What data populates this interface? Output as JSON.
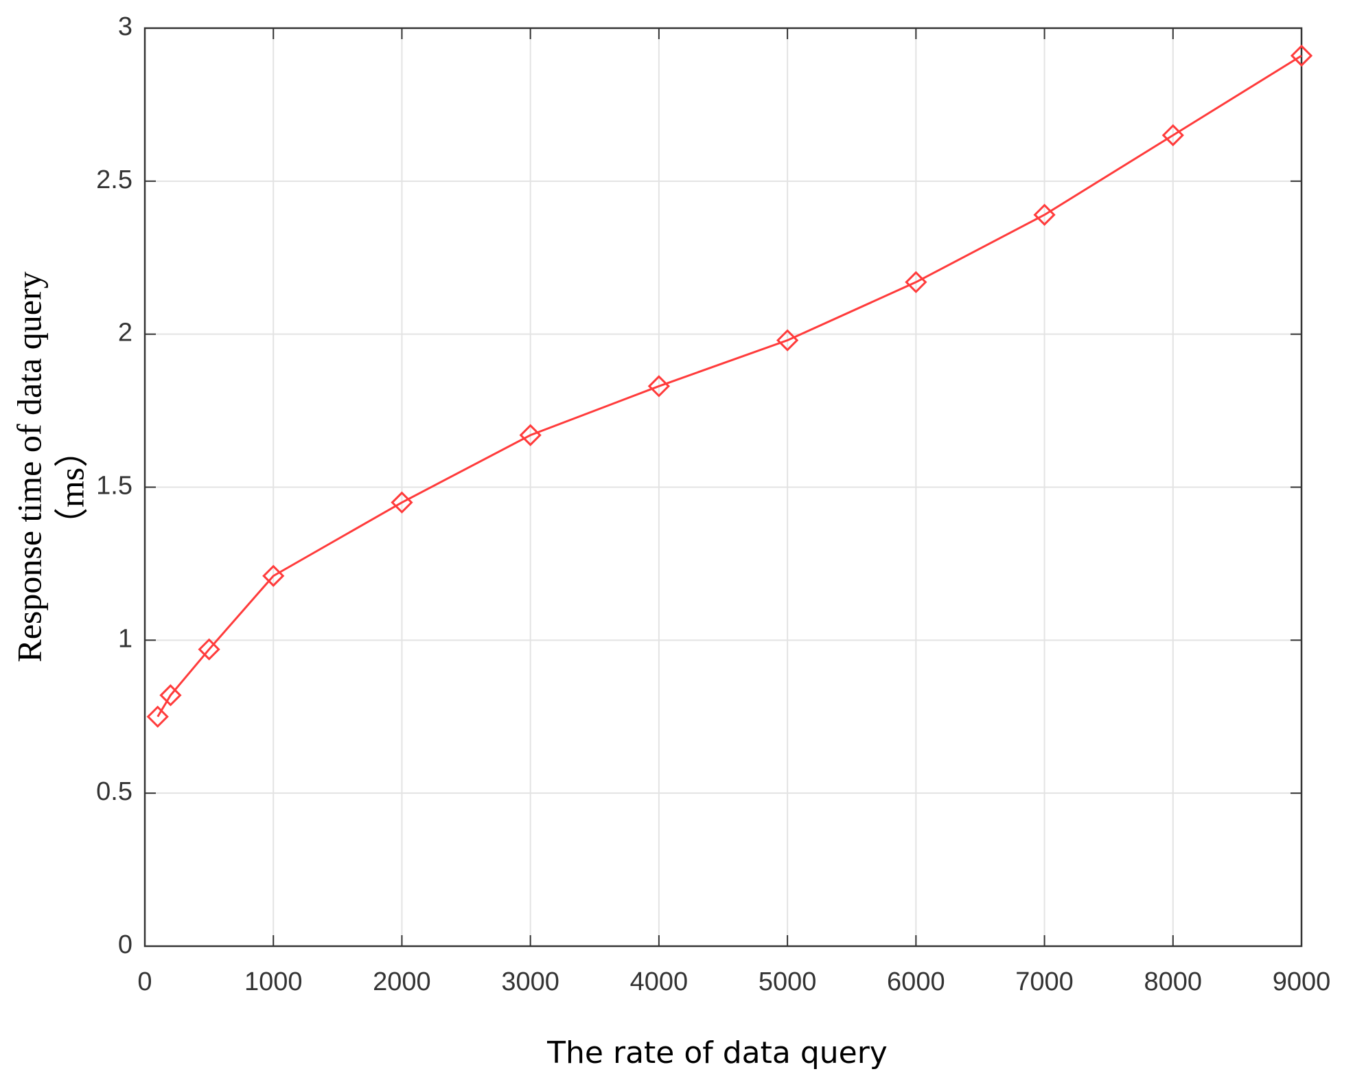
{
  "chart_data": {
    "type": "line",
    "xlabel": "The rate of data query",
    "ylabel": [
      "Response time of data query",
      "（ms）"
    ],
    "x": [
      100,
      200,
      500,
      1000,
      2000,
      3000,
      4000,
      5000,
      6000,
      7000,
      8000,
      9000
    ],
    "series": [
      {
        "color": "#ff3b3b",
        "marker": "diamond",
        "values": [
          0.75,
          0.82,
          0.97,
          1.21,
          1.45,
          1.67,
          1.83,
          1.98,
          2.17,
          2.39,
          2.65,
          2.91
        ]
      }
    ],
    "xlim": [
      0,
      9000
    ],
    "xticks": [
      0,
      1000,
      2000,
      3000,
      4000,
      5000,
      6000,
      7000,
      8000,
      9000
    ],
    "ylim": [
      0,
      3
    ],
    "yticks": [
      0,
      0.5,
      1,
      1.5,
      2,
      2.5,
      3
    ],
    "grid": true
  }
}
